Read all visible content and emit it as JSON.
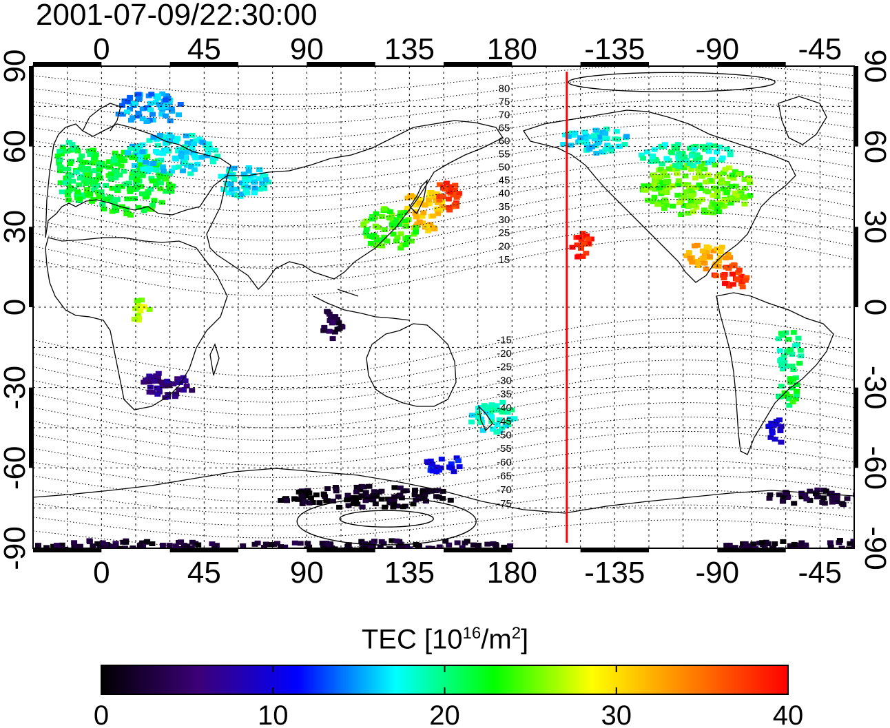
{
  "timestamp": "2001-07-09/22:30:00",
  "colorbar": {
    "title_prefix": "TEC  [10",
    "title_exp": "16",
    "title_mid": "/m",
    "title_exp2": "2",
    "title_suffix": "]",
    "min": 0,
    "max": 40,
    "ticks": [
      "0",
      "10",
      "20",
      "30",
      "40"
    ],
    "colors": [
      "#000000",
      "#3c0078",
      "#0000ff",
      "#00ffff",
      "#00ff00",
      "#ffff00",
      "#ff8000",
      "#ff0000"
    ]
  },
  "map": {
    "top_labels": [
      "0",
      "45",
      "90",
      "135",
      "180",
      "-135",
      "-90",
      "-45"
    ],
    "bottom_labels": [
      "0",
      "45",
      "90",
      "135",
      "180",
      "-135",
      "-90",
      "-45"
    ],
    "left_labels": [
      "90",
      "60",
      "30",
      "0",
      "-30",
      "-60",
      "-90"
    ],
    "right_labels": [
      "90",
      "60",
      "30",
      "0",
      "-30",
      "-60",
      "-90"
    ],
    "magnetic_latitude_labels": [
      "80",
      "75",
      "70",
      "65",
      "60",
      "55",
      "50",
      "45",
      "40",
      "35",
      "30",
      "25",
      "20",
      "15",
      "-15",
      "-20",
      "-25",
      "-30",
      "-35",
      "-40",
      "-45",
      "-50",
      "-55",
      "-60",
      "-65",
      "-70",
      "-75"
    ],
    "terminator_longitude": -156,
    "tec_blobs": [
      {
        "lon": -12,
        "lat": 52,
        "rx": 10,
        "ry": 12,
        "tec": 21
      },
      {
        "lon": 10,
        "lat": 47,
        "rx": 20,
        "ry": 12,
        "tec": 22
      },
      {
        "lon": 30,
        "lat": 58,
        "rx": 20,
        "ry": 8,
        "tec": 17
      },
      {
        "lon": 20,
        "lat": 75,
        "rx": 15,
        "ry": 6,
        "tec": 15
      },
      {
        "lon": 60,
        "lat": 48,
        "rx": 12,
        "ry": 6,
        "tec": 17
      },
      {
        "lon": 140,
        "lat": 37,
        "rx": 10,
        "ry": 8,
        "tec": 31
      },
      {
        "lon": 150,
        "lat": 42,
        "rx": 6,
        "ry": 6,
        "tec": 37
      },
      {
        "lon": 125,
        "lat": 30,
        "rx": 12,
        "ry": 8,
        "tec": 24
      },
      {
        "lon": -150,
        "lat": 23,
        "rx": 5,
        "ry": 6,
        "tec": 39
      },
      {
        "lon": -145,
        "lat": 63,
        "rx": 15,
        "ry": 5,
        "tec": 17
      },
      {
        "lon": -100,
        "lat": 45,
        "rx": 25,
        "ry": 10,
        "tec": 25
      },
      {
        "lon": -105,
        "lat": 58,
        "rx": 20,
        "ry": 5,
        "tec": 19
      },
      {
        "lon": -95,
        "lat": 20,
        "rx": 10,
        "ry": 5,
        "tec": 32
      },
      {
        "lon": -85,
        "lat": 12,
        "rx": 8,
        "ry": 5,
        "tec": 38
      },
      {
        "lon": 28,
        "lat": -28,
        "rx": 12,
        "ry": 5,
        "tec": 6
      },
      {
        "lon": 115,
        "lat": -70,
        "rx": 40,
        "ry": 4,
        "tec": 1
      },
      {
        "lon": 150,
        "lat": -58,
        "rx": 10,
        "ry": 3,
        "tec": 11
      },
      {
        "lon": 170,
        "lat": -40,
        "rx": 10,
        "ry": 6,
        "tec": 18
      },
      {
        "lon": -60,
        "lat": -30,
        "rx": 5,
        "ry": 6,
        "tec": 22
      },
      {
        "lon": -60,
        "lat": -15,
        "rx": 6,
        "ry": 8,
        "tec": 20
      },
      {
        "lon": -65,
        "lat": -45,
        "rx": 4,
        "ry": 5,
        "tec": 9
      },
      {
        "lon": 15,
        "lat": 0,
        "rx": 5,
        "ry": 4,
        "tec": 27
      },
      {
        "lon": 100,
        "lat": -5,
        "rx": 5,
        "ry": 6,
        "tec": 3
      },
      {
        "lon": -40,
        "lat": -70,
        "rx": 30,
        "ry": 3,
        "tec": 2
      },
      {
        "lon": -50,
        "lat": -88,
        "rx": 40,
        "ry": 2,
        "tec": 2
      },
      {
        "lon": 10,
        "lat": -88,
        "rx": 40,
        "ry": 2,
        "tec": 2
      },
      {
        "lon": 120,
        "lat": -88,
        "rx": 60,
        "ry": 2,
        "tec": 2
      }
    ]
  }
}
